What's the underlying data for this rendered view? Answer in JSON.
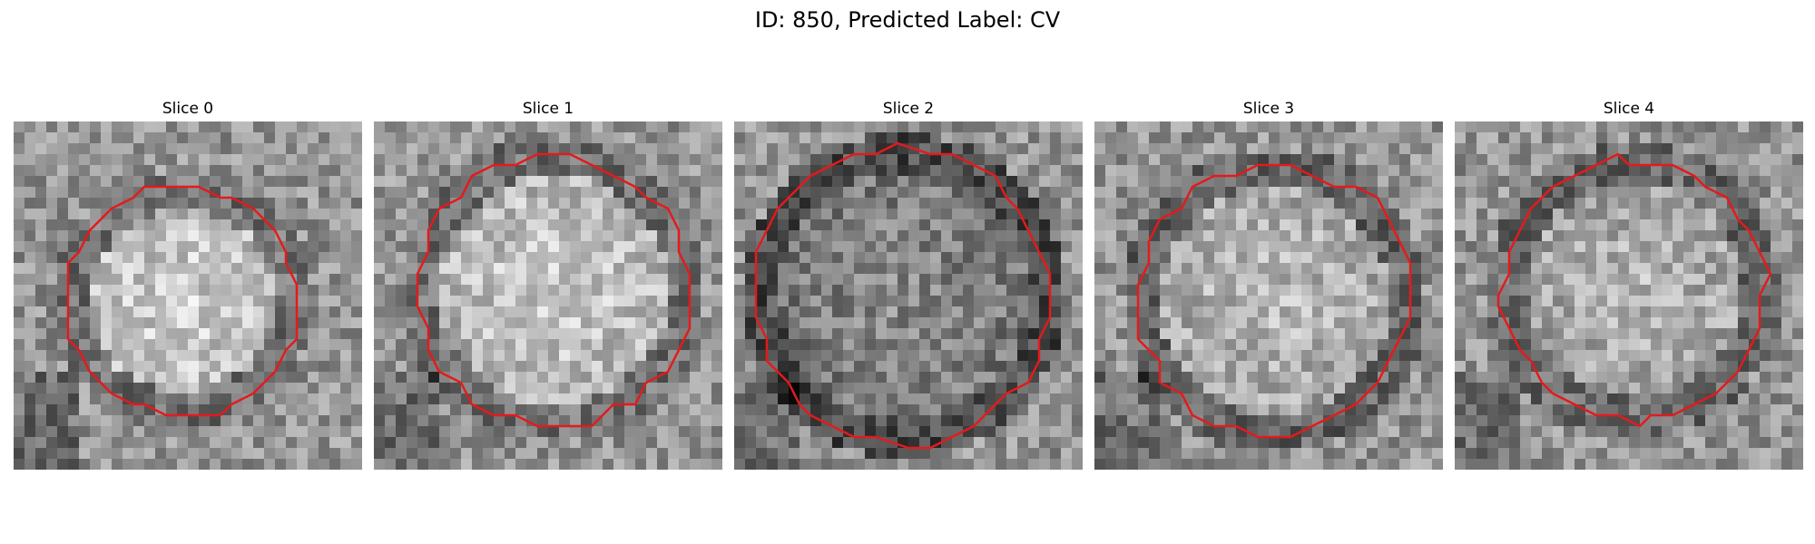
{
  "figure": {
    "title": "ID: 850, Predicted Label: CV"
  },
  "panels": [
    {
      "title": "Slice 0",
      "contour_color": "#e41a1c",
      "center_brightness": 0.82,
      "ring_darkness": 0.45
    },
    {
      "title": "Slice 1",
      "contour_color": "#e41a1c",
      "center_brightness": 0.8,
      "ring_darkness": 0.45
    },
    {
      "title": "Slice 2",
      "contour_color": "#e41a1c",
      "center_brightness": 0.55,
      "ring_darkness": 0.3
    },
    {
      "title": "Slice 3",
      "contour_color": "#e41a1c",
      "center_brightness": 0.74,
      "ring_darkness": 0.4
    },
    {
      "title": "Slice 4",
      "contour_color": "#e41a1c",
      "center_brightness": 0.72,
      "ring_darkness": 0.42
    }
  ]
}
